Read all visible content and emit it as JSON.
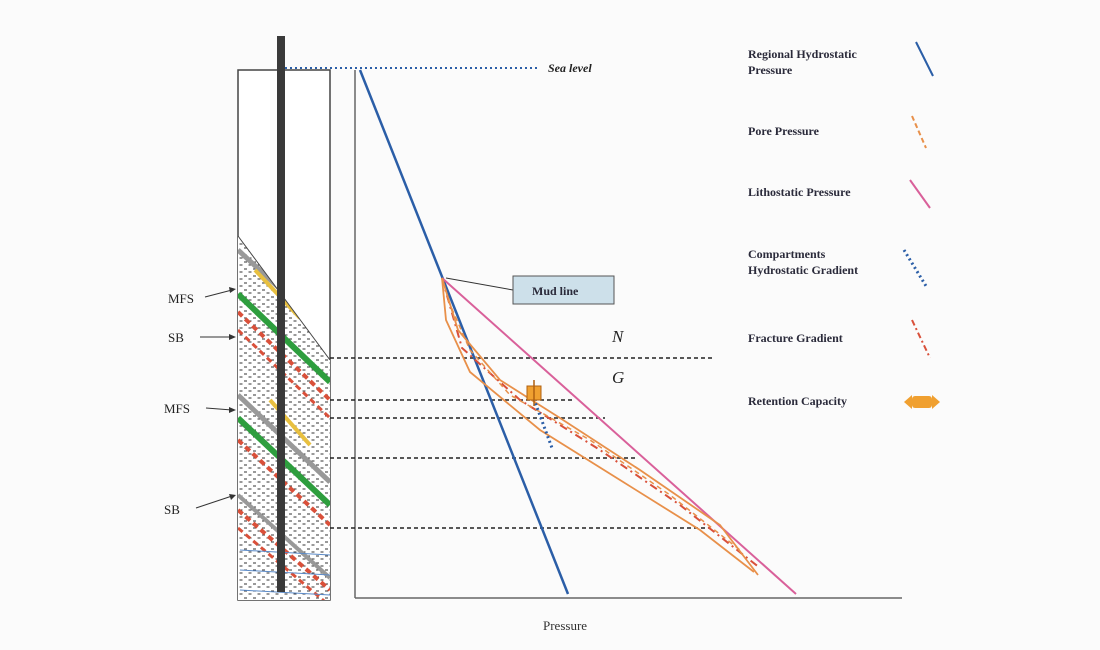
{
  "labels": {
    "sea_level": "Sea level",
    "mud_line": "Mud line",
    "x_axis": "Pressure",
    "zone_n": "N",
    "zone_g": "G"
  },
  "side_labels": [
    "MFS",
    "SB",
    "MFS",
    "SB"
  ],
  "legend": [
    {
      "lines": [
        "Regional Hydrostatic",
        "Pressure"
      ],
      "icon": "solid-line-icon",
      "color": "#2b5ea7"
    },
    {
      "lines": [
        "Pore Pressure"
      ],
      "icon": "dashed-line-icon",
      "color": "#e8904a"
    },
    {
      "lines": [
        "Lithostatic Pressure"
      ],
      "icon": "solid-line-icon",
      "color": "#d9609a"
    },
    {
      "lines": [
        "Compartments",
        "Hydrostatic Gradient"
      ],
      "icon": "dotted-line-icon",
      "color": "#2b5ea7"
    },
    {
      "lines": [
        "Fracture Gradient"
      ],
      "icon": "dash-dot-line-icon",
      "color": "#d9503a"
    },
    {
      "lines": [
        "Retention Capacity"
      ],
      "icon": "double-arrow-icon",
      "color": "#f0a030"
    }
  ],
  "colors": {
    "hydrostatic": "#2b5ea7",
    "pore": "#e8904a",
    "lithostatic": "#d9609a",
    "fracture": "#d9503a",
    "retention": "#f0a030",
    "sand": "#2e9e3e",
    "shale": "#d9503a"
  }
}
